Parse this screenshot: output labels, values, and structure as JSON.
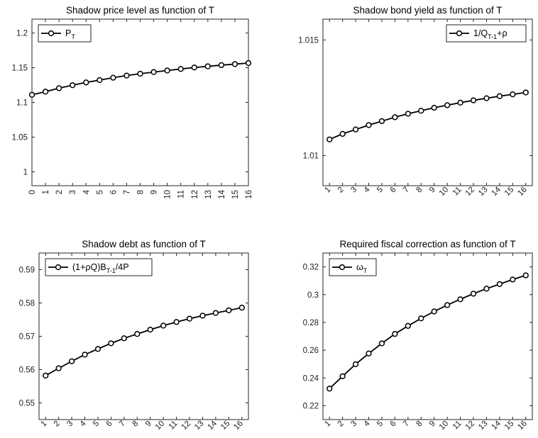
{
  "figure": {
    "background": "#ffffff",
    "line_color": "#000000"
  },
  "chart_data": [
    {
      "type": "line",
      "title": "Shadow price level as function of T",
      "xlabel": "",
      "ylabel": "",
      "xlim": [
        0,
        16
      ],
      "ylim": [
        0.98,
        1.22
      ],
      "x_ticks": [
        0,
        1,
        2,
        3,
        4,
        5,
        6,
        7,
        8,
        9,
        10,
        11,
        12,
        13,
        14,
        15,
        16
      ],
      "y_ticks": [
        1,
        1.05,
        1.1,
        1.15,
        1.2
      ],
      "y_tick_labels": [
        "1",
        "1.05",
        "1.1",
        "1.15",
        "1.2"
      ],
      "x_tick_rotation": -90,
      "grid": false,
      "legend_position": "top-left",
      "legend": {
        "base": "P",
        "sub": "T",
        "tail": ""
      },
      "series": [
        {
          "name": "P_T",
          "x": [
            0,
            1,
            2,
            3,
            4,
            5,
            6,
            7,
            8,
            9,
            10,
            11,
            12,
            13,
            14,
            15,
            16
          ],
          "y": [
            1.111,
            1.1155,
            1.1205,
            1.1248,
            1.1288,
            1.1322,
            1.1356,
            1.1387,
            1.1414,
            1.1437,
            1.146,
            1.1482,
            1.1503,
            1.152,
            1.1537,
            1.1552,
            1.1567
          ]
        }
      ]
    },
    {
      "type": "line",
      "title": "Shadow bond yield as function of T",
      "xlabel": "",
      "ylabel": "",
      "xlim": [
        0.5,
        16.5
      ],
      "ylim": [
        1.0087,
        1.0159
      ],
      "x_ticks": [
        1,
        2,
        3,
        4,
        5,
        6,
        7,
        8,
        9,
        10,
        11,
        12,
        13,
        14,
        15,
        16
      ],
      "y_ticks": [
        1.01,
        1.015
      ],
      "y_tick_labels": [
        "1.01",
        "1.015"
      ],
      "x_tick_rotation": -45,
      "grid": false,
      "legend_position": "top-right",
      "legend": {
        "base": "1/Q",
        "sub": "T-1",
        "tail": "+ρ"
      },
      "series": [
        {
          "name": "1/Q_{T-1}+ρ",
          "x": [
            1,
            2,
            3,
            4,
            5,
            6,
            7,
            8,
            9,
            10,
            11,
            12,
            13,
            14,
            15,
            16
          ],
          "y": [
            1.0107,
            1.01094,
            1.01113,
            1.01132,
            1.01149,
            1.01166,
            1.01181,
            1.01194,
            1.01207,
            1.01218,
            1.01229,
            1.01239,
            1.01248,
            1.01257,
            1.01265,
            1.01273
          ]
        }
      ]
    },
    {
      "type": "line",
      "title": "Shadow debt as function of T",
      "xlabel": "",
      "ylabel": "",
      "xlim": [
        0.5,
        16.5
      ],
      "ylim": [
        0.545,
        0.595
      ],
      "x_ticks": [
        1,
        2,
        3,
        4,
        5,
        6,
        7,
        8,
        9,
        10,
        11,
        12,
        13,
        14,
        15,
        16
      ],
      "y_ticks": [
        0.55,
        0.56,
        0.57,
        0.58,
        0.59
      ],
      "y_tick_labels": [
        "0.55",
        "0.56",
        "0.57",
        "0.58",
        "0.59"
      ],
      "x_tick_rotation": -45,
      "grid": false,
      "legend_position": "top-left",
      "legend": {
        "base": "(1+ρQ)B",
        "sub": "T-1",
        "tail": "/4P"
      },
      "series": [
        {
          "name": "(1+ρQ)B_{T-1}/4P",
          "x": [
            1,
            2,
            3,
            4,
            5,
            6,
            7,
            8,
            9,
            10,
            11,
            12,
            13,
            14,
            15,
            16
          ],
          "y": [
            0.5582,
            0.5604,
            0.5625,
            0.5645,
            0.5662,
            0.5679,
            0.5694,
            0.5707,
            0.572,
            0.5732,
            0.5743,
            0.5753,
            0.5762,
            0.577,
            0.5778,
            0.5786
          ]
        }
      ]
    },
    {
      "type": "line",
      "title": "Required fiscal correction as function of T",
      "xlabel": "",
      "ylabel": "",
      "xlim": [
        0.5,
        16.5
      ],
      "ylim": [
        0.21,
        0.33
      ],
      "x_ticks": [
        1,
        2,
        3,
        4,
        5,
        6,
        7,
        8,
        9,
        10,
        11,
        12,
        13,
        14,
        15,
        16
      ],
      "y_ticks": [
        0.22,
        0.24,
        0.26,
        0.28,
        0.3,
        0.32
      ],
      "y_tick_labels": [
        "0.22",
        "0.24",
        "0.26",
        "0.28",
        "0.3",
        "0.32"
      ],
      "x_tick_rotation": -45,
      "grid": false,
      "legend_position": "top-left",
      "legend": {
        "base": "ω",
        "sub": "T",
        "tail": ""
      },
      "series": [
        {
          "name": "ω_T",
          "x": [
            1,
            2,
            3,
            4,
            5,
            6,
            7,
            8,
            9,
            10,
            11,
            12,
            13,
            14,
            15,
            16
          ],
          "y": [
            0.2323,
            0.2412,
            0.2499,
            0.2576,
            0.2649,
            0.2717,
            0.2775,
            0.2829,
            0.2879,
            0.2925,
            0.2967,
            0.3007,
            0.3043,
            0.3076,
            0.3109,
            0.3139
          ]
        }
      ]
    }
  ]
}
